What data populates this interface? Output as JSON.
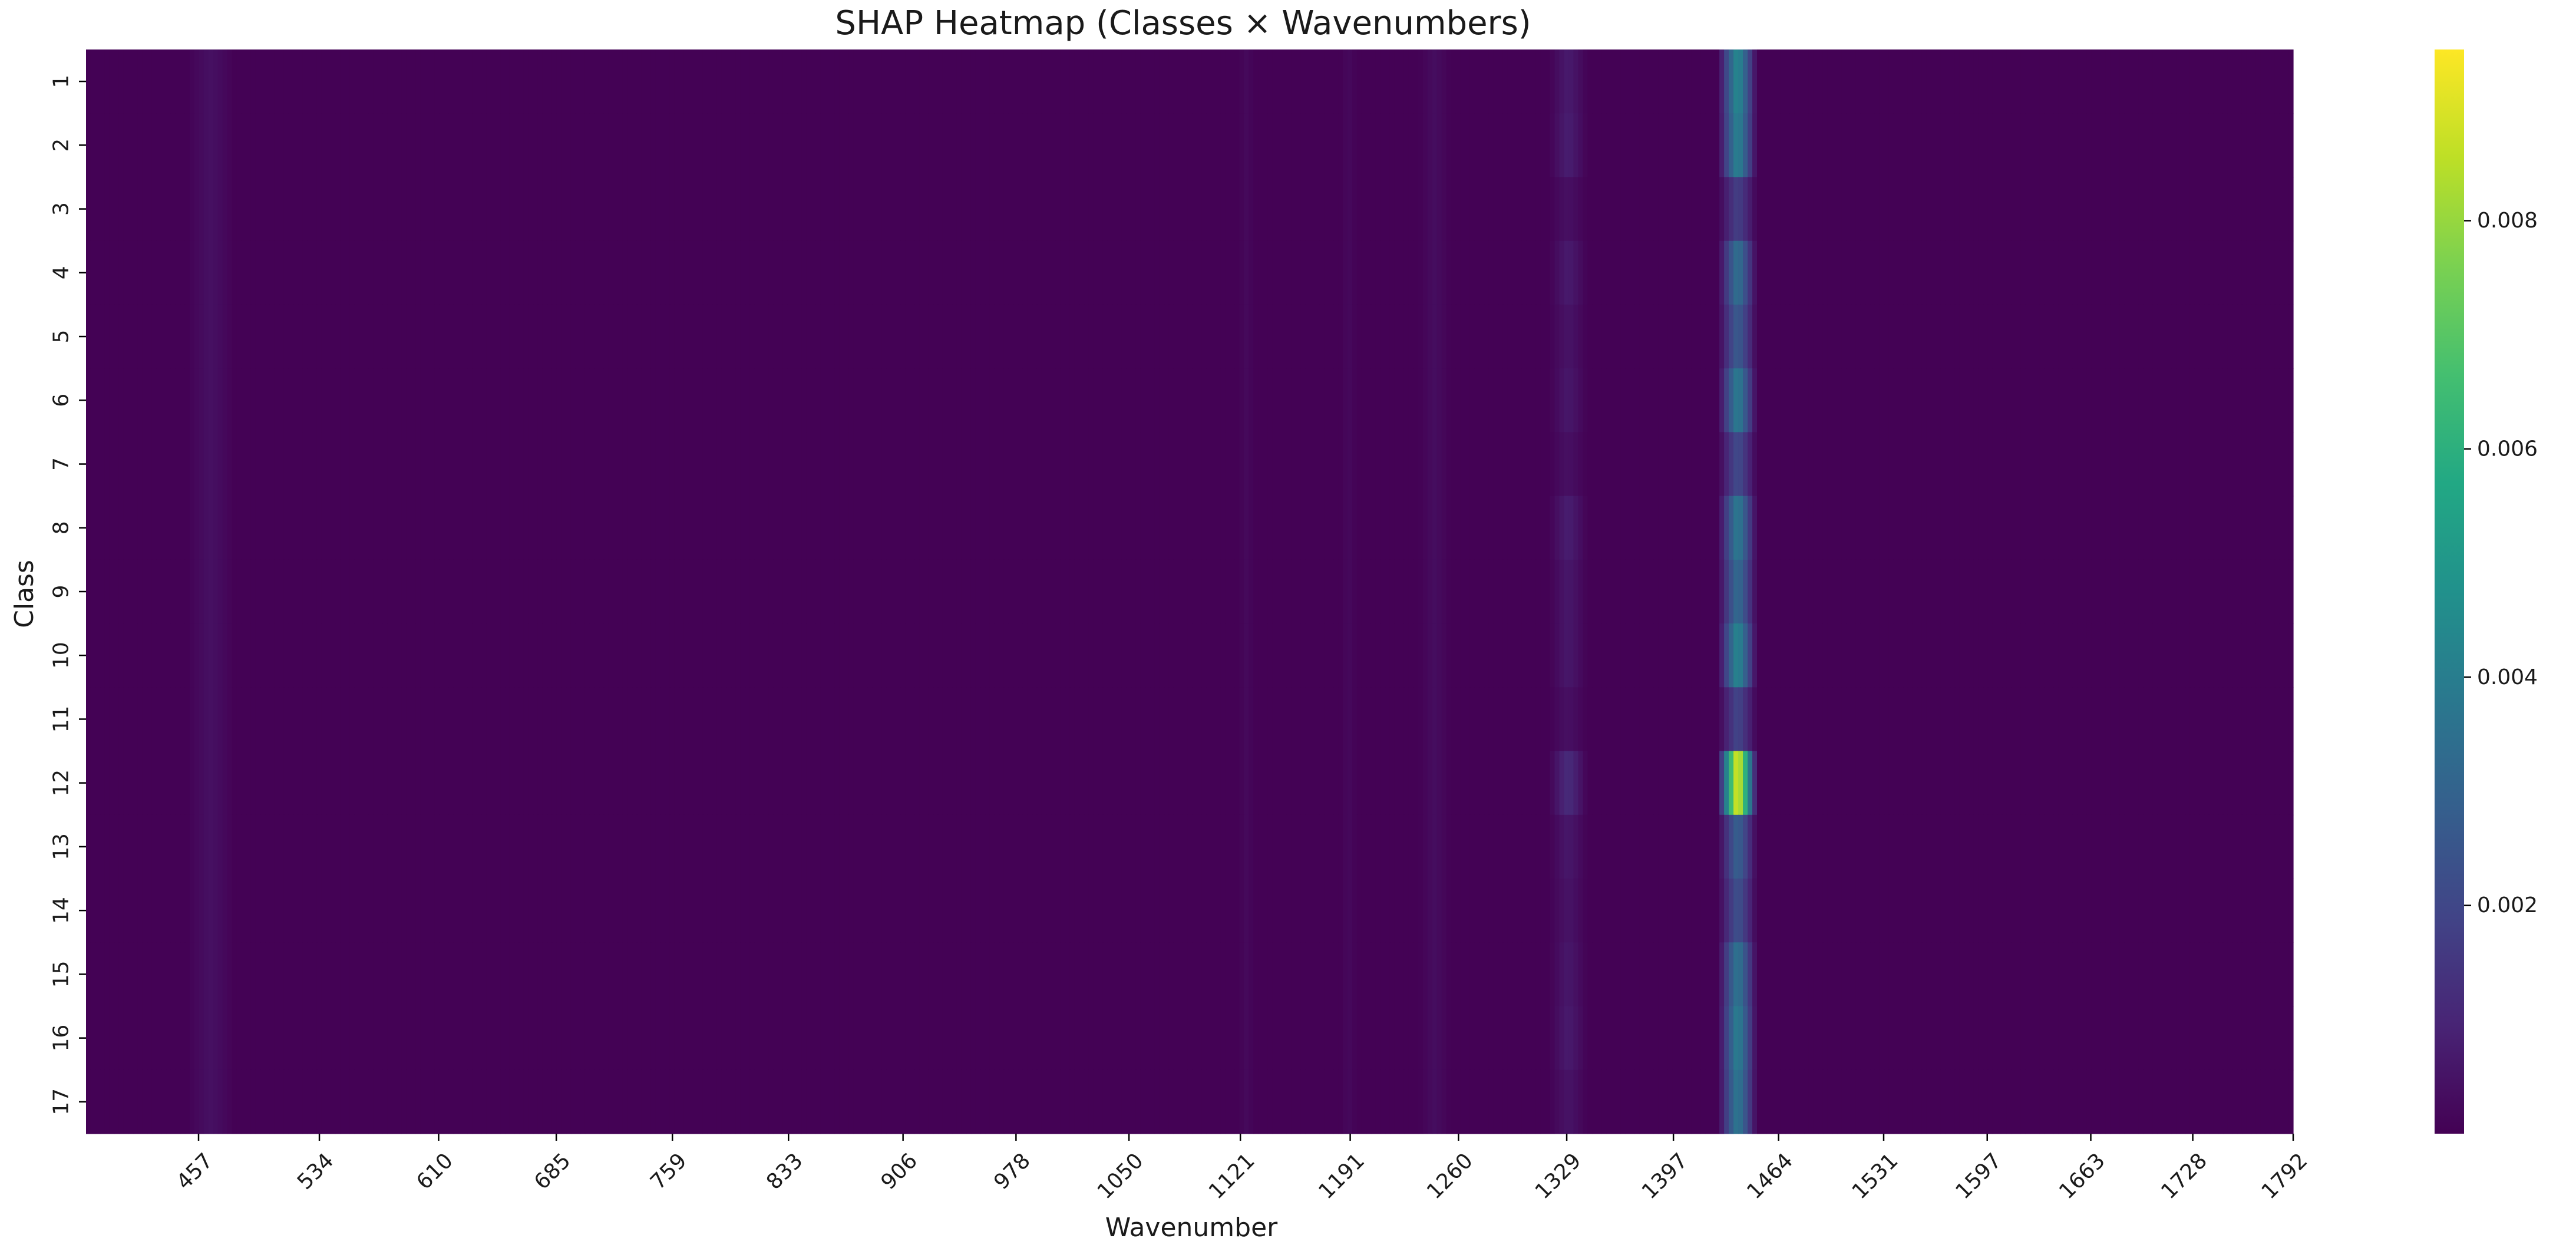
{
  "chart_data": {
    "type": "heatmap",
    "title": "SHAP Heatmap (Classes × Wavenumbers)",
    "xlabel": "Wavenumber",
    "ylabel": "Class",
    "colormap": "viridis",
    "x_tick_labels": [
      "457",
      "534",
      "610",
      "685",
      "759",
      "833",
      "906",
      "978",
      "1050",
      "1121",
      "1191",
      "1260",
      "1329",
      "1397",
      "1464",
      "1531",
      "1597",
      "1663",
      "1728",
      "1792"
    ],
    "y_categories": [
      "1",
      "2",
      "3",
      "4",
      "5",
      "6",
      "7",
      "8",
      "9",
      "10",
      "11",
      "12",
      "13",
      "14",
      "15",
      "16",
      "17"
    ],
    "colorbar": {
      "min": 0,
      "max": 0.0095,
      "tick_values": [
        0.002,
        0.004,
        0.006,
        0.008
      ],
      "tick_labels": [
        "0.002",
        "0.004",
        "0.006",
        "0.008"
      ]
    },
    "grid": false,
    "legend": "colorbar-right",
    "peak_band": {
      "wavenumber_range": [
        1426,
        1450
      ],
      "center": 1438,
      "class_peak_values": [
        0.0046,
        0.0043,
        0.0018,
        0.0036,
        0.0028,
        0.0041,
        0.0022,
        0.004,
        0.0034,
        0.0045,
        0.002,
        0.0095,
        0.003,
        0.0024,
        0.0038,
        0.0042,
        0.0039
      ]
    },
    "secondary_band": {
      "wavenumber_range": [
        1318,
        1342
      ],
      "class_peak_values": [
        0.0007,
        0.0008,
        0.0004,
        0.0007,
        0.0005,
        0.0006,
        0.0004,
        0.0008,
        0.0006,
        0.0006,
        0.0004,
        0.0012,
        0.0006,
        0.0005,
        0.0006,
        0.0007,
        0.0005
      ]
    },
    "minor_bands": [
      {
        "wavenumber_range": [
          450,
          480
        ],
        "value": 0.0004
      },
      {
        "wavenumber_range": [
          1235,
          1255
        ],
        "value": 0.0003
      },
      {
        "wavenumber_range": [
          1120,
          1130
        ],
        "value": 0.0002
      },
      {
        "wavenumber_range": [
          1185,
          1195
        ],
        "value": 0.0002
      }
    ]
  }
}
